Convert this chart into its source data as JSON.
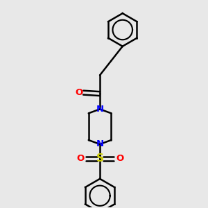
{
  "background_color": "#e8e8e8",
  "bond_color": "#000000",
  "nitrogen_color": "#0000ff",
  "oxygen_color": "#ff0000",
  "sulfur_color": "#cccc00",
  "line_width": 1.8,
  "figsize": [
    3.0,
    3.0
  ],
  "dpi": 100,
  "xlim": [
    0,
    10
  ],
  "ylim": [
    0,
    10
  ]
}
